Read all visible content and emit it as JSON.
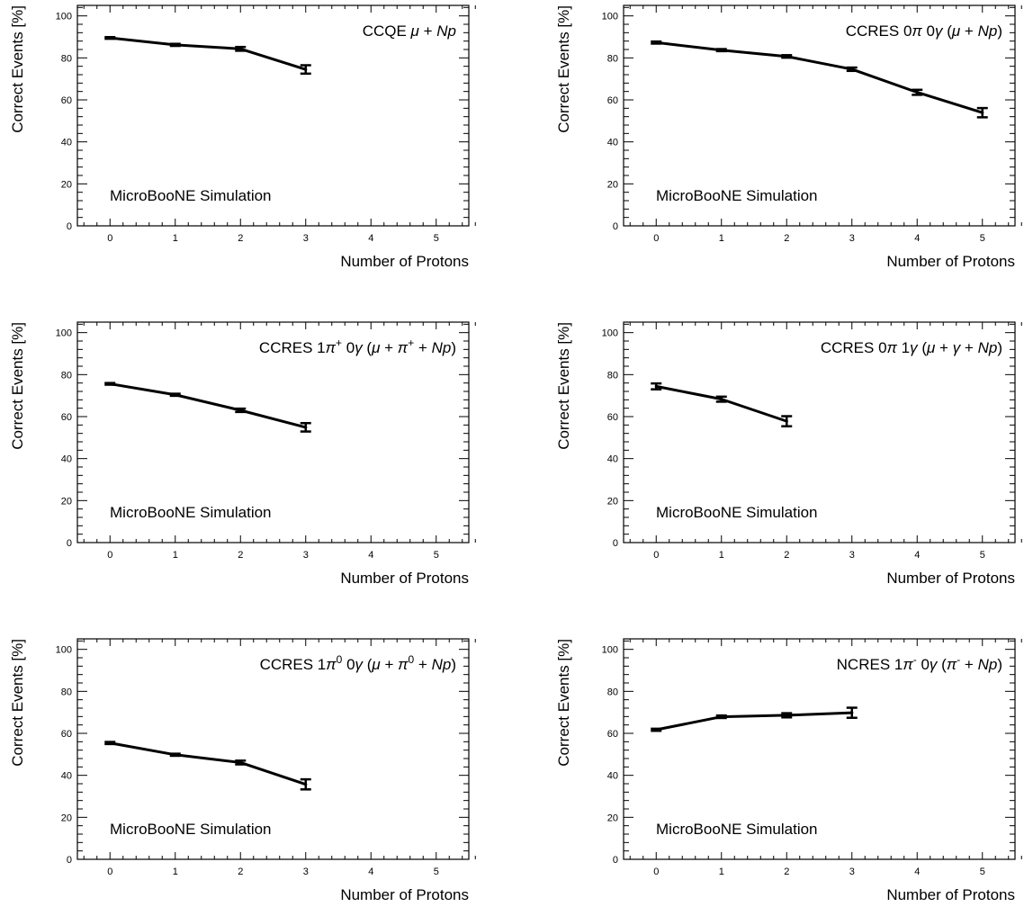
{
  "chart_data": [
    {
      "type": "line",
      "title": "CCQE μ + Np",
      "title_parts": [
        {
          "t": "CCQE "
        },
        {
          "t": "μ",
          "i": true
        },
        {
          "t": " + "
        },
        {
          "t": "N",
          "i": true
        },
        {
          "t": "p",
          "i": true
        }
      ],
      "annotation": "MicroBooNE Simulation",
      "xlabel": "Number of Protons",
      "ylabel": "Correct Events [%]",
      "xlim": [
        -0.5,
        5.5
      ],
      "ylim": [
        0,
        105
      ],
      "xticks": [
        0,
        1,
        2,
        3,
        4,
        5
      ],
      "yticks": [
        0,
        20,
        40,
        60,
        80,
        100
      ],
      "grid": false,
      "series": [
        {
          "x": [
            0,
            1,
            2,
            3
          ],
          "y": [
            89.5,
            86.2,
            84.3,
            74.5
          ],
          "err": [
            0.4,
            0.5,
            0.9,
            2.0
          ]
        }
      ]
    },
    {
      "type": "line",
      "title": "CCRES 0π 0γ (μ + Np)",
      "title_parts": [
        {
          "t": "CCRES 0"
        },
        {
          "t": "π",
          "i": true
        },
        {
          "t": " 0"
        },
        {
          "t": "γ",
          "i": true
        },
        {
          "t": " ("
        },
        {
          "t": "μ",
          "i": true
        },
        {
          "t": " + "
        },
        {
          "t": "N",
          "i": true
        },
        {
          "t": "p",
          "i": true
        },
        {
          "t": ")"
        }
      ],
      "annotation": "MicroBooNE Simulation",
      "xlabel": "Number of Protons",
      "ylabel": "Correct Events [%]",
      "xlim": [
        -0.5,
        5.5
      ],
      "ylim": [
        0,
        105
      ],
      "xticks": [
        0,
        1,
        2,
        3,
        4,
        5
      ],
      "yticks": [
        0,
        20,
        40,
        60,
        80,
        100
      ],
      "grid": false,
      "series": [
        {
          "x": [
            0,
            1,
            2,
            3,
            4,
            5
          ],
          "y": [
            87.3,
            83.7,
            80.7,
            74.6,
            63.6,
            53.9
          ],
          "err": [
            0.5,
            0.5,
            0.6,
            0.8,
            1.2,
            2.2
          ]
        }
      ]
    },
    {
      "type": "line",
      "title": "CCRES 1π+ 0γ (μ + π+ + Np)",
      "title_parts": [
        {
          "t": "CCRES 1"
        },
        {
          "t": "π",
          "i": true
        },
        {
          "t": "+",
          "sup": true
        },
        {
          "t": " 0"
        },
        {
          "t": "γ",
          "i": true
        },
        {
          "t": " ("
        },
        {
          "t": "μ",
          "i": true
        },
        {
          "t": " + "
        },
        {
          "t": "π",
          "i": true
        },
        {
          "t": "+",
          "sup": true
        },
        {
          "t": " + "
        },
        {
          "t": "N",
          "i": true
        },
        {
          "t": "p",
          "i": true
        },
        {
          "t": ")"
        }
      ],
      "annotation": "MicroBooNE Simulation",
      "xlabel": "Number of Protons",
      "ylabel": "Correct Events [%]",
      "xlim": [
        -0.5,
        5.5
      ],
      "ylim": [
        0,
        105
      ],
      "xticks": [
        0,
        1,
        2,
        3,
        4,
        5
      ],
      "yticks": [
        0,
        20,
        40,
        60,
        80,
        100
      ],
      "grid": false,
      "series": [
        {
          "x": [
            0,
            1,
            2,
            3
          ],
          "y": [
            75.6,
            70.4,
            63.0,
            54.9
          ],
          "err": [
            0.4,
            0.5,
            0.8,
            2.0
          ]
        }
      ]
    },
    {
      "type": "line",
      "title": "CCRES 0π 1γ (μ + γ + Np)",
      "title_parts": [
        {
          "t": "CCRES 0"
        },
        {
          "t": "π",
          "i": true
        },
        {
          "t": " 1"
        },
        {
          "t": "γ",
          "i": true
        },
        {
          "t": " ("
        },
        {
          "t": "μ",
          "i": true
        },
        {
          "t": " + "
        },
        {
          "t": "γ",
          "i": true
        },
        {
          "t": " + "
        },
        {
          "t": "N",
          "i": true
        },
        {
          "t": "p",
          "i": true
        },
        {
          "t": ")"
        }
      ],
      "annotation": "MicroBooNE Simulation",
      "xlabel": "Number of Protons",
      "ylabel": "Correct Events [%]",
      "xlim": [
        -0.5,
        5.5
      ],
      "ylim": [
        0,
        105
      ],
      "xticks": [
        0,
        1,
        2,
        3,
        4,
        5
      ],
      "yticks": [
        0,
        20,
        40,
        60,
        80,
        100
      ],
      "grid": false,
      "series": [
        {
          "x": [
            0,
            1,
            2
          ],
          "y": [
            74.4,
            68.3,
            57.8
          ],
          "err": [
            1.4,
            1.2,
            2.4
          ]
        }
      ]
    },
    {
      "type": "line",
      "title": "CCRES 1π0 0γ (μ + π0 + Np)",
      "title_parts": [
        {
          "t": "CCRES 1"
        },
        {
          "t": "π",
          "i": true
        },
        {
          "t": "0",
          "sup": true
        },
        {
          "t": " 0"
        },
        {
          "t": "γ",
          "i": true
        },
        {
          "t": " ("
        },
        {
          "t": "μ",
          "i": true
        },
        {
          "t": " + "
        },
        {
          "t": "π",
          "i": true
        },
        {
          "t": "0",
          "sup": true
        },
        {
          "t": " + "
        },
        {
          "t": "N",
          "i": true
        },
        {
          "t": "p",
          "i": true
        },
        {
          "t": ")"
        }
      ],
      "annotation": "MicroBooNE Simulation",
      "xlabel": "Number of Protons",
      "ylabel": "Correct Events [%]",
      "xlim": [
        -0.5,
        5.5
      ],
      "ylim": [
        0,
        105
      ],
      "xticks": [
        0,
        1,
        2,
        3,
        4,
        5
      ],
      "yticks": [
        0,
        20,
        40,
        60,
        80,
        100
      ],
      "grid": false,
      "series": [
        {
          "x": [
            0,
            1,
            2,
            3
          ],
          "y": [
            55.4,
            49.8,
            46.1,
            35.7
          ],
          "err": [
            0.5,
            0.5,
            0.9,
            2.4
          ]
        }
      ]
    },
    {
      "type": "line",
      "title": "NCRES 1π- 0γ (π- + Np)",
      "title_parts": [
        {
          "t": "NCRES 1"
        },
        {
          "t": "π",
          "i": true
        },
        {
          "t": "-",
          "sup": true
        },
        {
          "t": " 0"
        },
        {
          "t": "γ",
          "i": true
        },
        {
          "t": " ("
        },
        {
          "t": "π",
          "i": true
        },
        {
          "t": "-",
          "sup": true
        },
        {
          "t": " + "
        },
        {
          "t": "N",
          "i": true
        },
        {
          "t": "p",
          "i": true
        },
        {
          "t": ")"
        }
      ],
      "annotation": "MicroBooNE Simulation",
      "xlabel": "Number of Protons",
      "ylabel": "Correct Events [%]",
      "xlim": [
        -0.5,
        5.5
      ],
      "ylim": [
        0,
        105
      ],
      "xticks": [
        0,
        1,
        2,
        3,
        4,
        5
      ],
      "yticks": [
        0,
        20,
        40,
        60,
        80,
        100
      ],
      "grid": false,
      "series": [
        {
          "x": [
            0,
            1,
            2,
            3
          ],
          "y": [
            61.7,
            67.9,
            68.6,
            69.8
          ],
          "err": [
            0.5,
            0.6,
            1.0,
            2.4
          ]
        }
      ]
    }
  ]
}
